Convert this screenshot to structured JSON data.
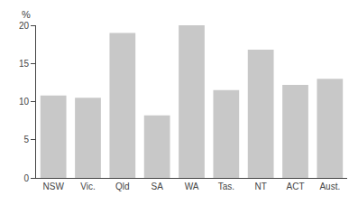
{
  "chart_data": {
    "type": "bar",
    "categories": [
      "NSW",
      "Vic.",
      "Qld",
      "SA",
      "WA",
      "Tas.",
      "NT",
      "ACT",
      "Aust."
    ],
    "values": [
      10.8,
      10.5,
      19.0,
      8.2,
      20.0,
      11.5,
      16.8,
      12.2,
      13.0
    ],
    "color": "#c8c8c8",
    "ylim": [
      0,
      20
    ],
    "yticks": [
      0,
      5,
      10,
      15,
      20
    ],
    "annotations": [
      "%"
    ],
    "grid": false
  }
}
